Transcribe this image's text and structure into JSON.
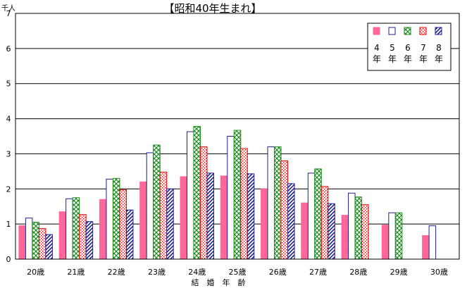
{
  "chart_data": {
    "type": "bar",
    "title": "【昭和40年生まれ】",
    "ylabel": "千人",
    "xlabel": "結　婚　年　齢",
    "ylim": [
      0,
      7
    ],
    "yticks": [
      "0",
      "1",
      "2",
      "3",
      "4",
      "5",
      "6",
      "7"
    ],
    "grid": true,
    "legend_position": "top-right",
    "categories": [
      "20歳",
      "21歳",
      "22歳",
      "23歳",
      "24歳",
      "25歳",
      "26歳",
      "27歳",
      "28歳",
      "29歳",
      "30歳"
    ],
    "series": [
      {
        "name": "4年",
        "color": "#ff6699",
        "pattern": "solid",
        "values": [
          0.95,
          1.35,
          1.7,
          2.2,
          2.35,
          2.37,
          2.0,
          1.6,
          1.25,
          0.97,
          0.67
        ]
      },
      {
        "name": "5年",
        "color": "#1f1f8f",
        "pattern": "hollow",
        "values": [
          1.17,
          1.72,
          2.28,
          3.03,
          3.63,
          3.5,
          3.2,
          2.45,
          1.88,
          1.32,
          0.95
        ]
      },
      {
        "name": "6年",
        "color": "#1a8a1a",
        "pattern": "crosshatch",
        "values": [
          1.05,
          1.75,
          2.3,
          3.25,
          3.78,
          3.67,
          3.2,
          2.57,
          1.77,
          1.32,
          null
        ]
      },
      {
        "name": "7年",
        "color": "#e00000",
        "pattern": "dots",
        "values": [
          0.87,
          1.27,
          1.98,
          2.48,
          3.2,
          3.15,
          2.8,
          2.07,
          1.55,
          null,
          null
        ]
      },
      {
        "name": "8年",
        "color": "#1f1f8f",
        "pattern": "diagonal",
        "values": [
          0.7,
          1.07,
          1.4,
          2.0,
          2.45,
          2.43,
          2.15,
          1.58,
          null,
          null,
          null
        ]
      }
    ]
  }
}
